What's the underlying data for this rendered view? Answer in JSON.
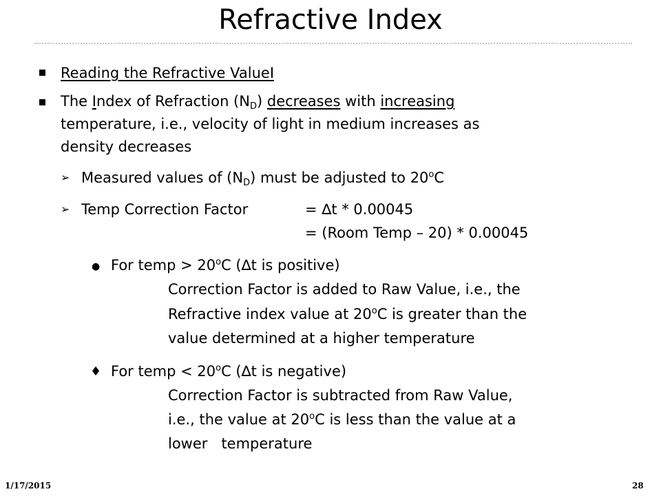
{
  "title": "Refractive Index",
  "items": {
    "reading": "Reading the Refractive ValueI",
    "index_line1": {
      "p1": "The ",
      "p2": "I",
      "p3": "ndex of Refraction (N",
      "sub": "D",
      "p4": ") ",
      "p5": "decreases",
      "p6": " with ",
      "p7": "increasing"
    },
    "index_line2": "temperature, i.e., velocity of light in medium increases as",
    "index_line3": "density decreases",
    "measured": {
      "p1": "Measured values of (N",
      "sub": "D",
      "p2": ") must be adjusted to 20",
      "sup": "o",
      "p3": "C"
    },
    "temp_factor": {
      "label": "Temp Correction Factor",
      "eq1": "= ∆t * 0.00045",
      "eq2": "= (Room Temp – 20) * 0.00045"
    },
    "greater": {
      "p1": "For temp > 20",
      "sup": "o",
      "p2": "C (∆t is positive)",
      "line1": "Correction Factor is added to Raw Value, i.e., the",
      "line2a": "Refractive index value at 20",
      "line2sup": "o",
      "line2b": "C is greater than the",
      "line3": "value determined at a higher temperature"
    },
    "less": {
      "p1": "For temp < 20",
      "sup": "o",
      "p2": "C (∆t is negative)",
      "line1": "Correction Factor is subtracted from Raw Value,",
      "line2a": "i.e., the value at 20",
      "line2sup": "o",
      "line2b": "C is less than the value at a",
      "line3": "lower   temperature"
    }
  },
  "bullets": {
    "arrow": "➢",
    "dot": "●",
    "diamond": "♦"
  },
  "footer": {
    "date": "1/17/2015",
    "page": "28"
  }
}
